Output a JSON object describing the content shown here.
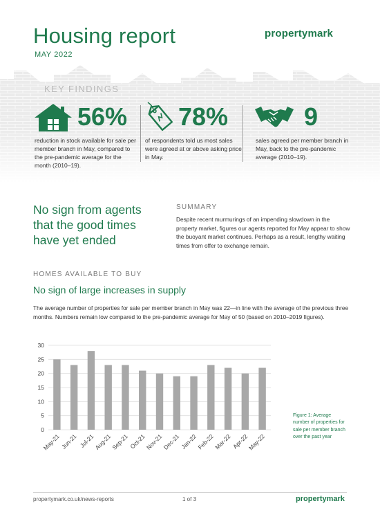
{
  "header": {
    "title": "Housing report",
    "date": "MAY 2022",
    "brand": "propertymark"
  },
  "key_findings": {
    "label": "KEY FINDINGS",
    "stats": [
      {
        "icon": "house-icon",
        "value": "56%",
        "text": "reduction in stock available for sale per member branch in May, compared to the pre-pandemic average for the month (2010–19)."
      },
      {
        "icon": "price-tag-icon",
        "value": "78%",
        "text": "of respondents told us most sales were agreed at or above asking price in May."
      },
      {
        "icon": "handshake-icon",
        "value": "9",
        "text": "sales agreed per member branch in May, back to the pre-pandemic average (2010–19)."
      }
    ]
  },
  "summary": {
    "headline": "No sign from agents that the good times have yet ended",
    "label": "SUMMARY",
    "text": "Despite recent murmurings of an impending slowdown in the property market, figures our agents reported for May appear to show the buoyant market continues. Perhaps as a result, lengthy waiting times from offer to exchange remain."
  },
  "homes": {
    "label": "HOMES AVAILABLE TO BUY",
    "subtitle": "No sign of large increases in supply",
    "text": "The average number of properties for sale per member branch in May was 22—in line with the average of the previous three months. Numbers remain low compared to the pre-pandemic average for May of 50 (based on 2010–2019 figures).",
    "caption": "Figure 1: Average number of properties for sale per member branch over the past year"
  },
  "chart_data": {
    "type": "bar",
    "categories": [
      "May-21",
      "Jun-21",
      "Jul-21",
      "Aug-21",
      "Sep-21",
      "Oct-21",
      "Nov-21",
      "Dec-21",
      "Jan-22",
      "Feb-22",
      "Mar-22",
      "Apr-22",
      "May-22"
    ],
    "values": [
      25,
      23,
      28,
      23,
      23,
      21,
      20,
      19,
      19,
      23,
      22,
      20,
      22
    ],
    "y_ticks": [
      0,
      5,
      10,
      15,
      20,
      25,
      30
    ],
    "ylim": [
      0,
      30
    ],
    "grid": true,
    "bar_color": "#a8a8a8",
    "grid_color": "#dedede"
  },
  "footer": {
    "url": "propertymark.co.uk/news-reports",
    "page": "1 of 3",
    "brand": "propertymark"
  },
  "colors": {
    "accent": "#1f7a4d"
  }
}
